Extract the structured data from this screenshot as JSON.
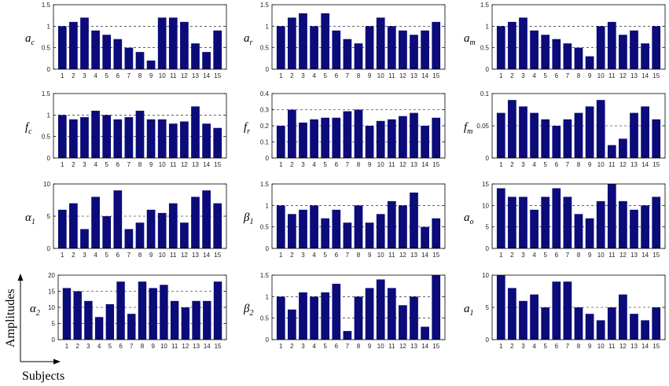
{
  "colors": {
    "bar": "#0b0b79",
    "axis": "#000000",
    "grid": "#000000"
  },
  "labels": {
    "amplitudes": "Amplitudes",
    "subjects": "Subjects"
  },
  "chart_data": [
    {
      "type": "bar",
      "label": {
        "main": "a",
        "sub": "c"
      },
      "categories": [
        "1",
        "2",
        "3",
        "4",
        "5",
        "6",
        "7",
        "8",
        "9",
        "10",
        "11",
        "12",
        "13",
        "14",
        "15"
      ],
      "values": [
        1.0,
        1.1,
        1.2,
        0.9,
        0.8,
        0.7,
        0.5,
        0.4,
        0.2,
        1.2,
        1.2,
        1.1,
        0.6,
        0.4,
        0.9
      ],
      "ylim": [
        0,
        1.5
      ],
      "yticks": [
        "0",
        "0.5",
        "1",
        "1.5"
      ],
      "ytick_values": [
        0,
        0.5,
        1,
        1.5
      ],
      "grid": true
    },
    {
      "type": "bar",
      "label": {
        "main": "a",
        "sub": "r"
      },
      "categories": [
        "1",
        "2",
        "3",
        "4",
        "5",
        "6",
        "7",
        "8",
        "9",
        "10",
        "11",
        "12",
        "13",
        "14",
        "15"
      ],
      "values": [
        1.0,
        1.2,
        1.3,
        1.0,
        1.3,
        0.9,
        0.7,
        0.6,
        1.0,
        1.2,
        1.0,
        0.9,
        0.8,
        0.9,
        1.1
      ],
      "ylim": [
        0,
        1.5
      ],
      "yticks": [
        "0",
        "0.5",
        "1",
        "1.5"
      ],
      "ytick_values": [
        0,
        0.5,
        1,
        1.5
      ],
      "grid": true
    },
    {
      "type": "bar",
      "label": {
        "main": "a",
        "sub": "m"
      },
      "categories": [
        "1",
        "2",
        "3",
        "4",
        "5",
        "6",
        "7",
        "8",
        "9",
        "10",
        "11",
        "12",
        "13",
        "14",
        "15"
      ],
      "values": [
        1.0,
        1.1,
        1.2,
        0.9,
        0.8,
        0.7,
        0.6,
        0.5,
        0.3,
        1.0,
        1.1,
        0.8,
        0.9,
        0.6,
        1.0
      ],
      "ylim": [
        0,
        1.5
      ],
      "yticks": [
        "0",
        "0.5",
        "1",
        "1.5"
      ],
      "ytick_values": [
        0,
        0.5,
        1,
        1.5
      ],
      "grid": true
    },
    {
      "type": "bar",
      "label": {
        "main": "f",
        "sub": "c"
      },
      "categories": [
        "1",
        "2",
        "3",
        "4",
        "5",
        "6",
        "7",
        "8",
        "9",
        "10",
        "11",
        "12",
        "13",
        "14",
        "15"
      ],
      "values": [
        1.0,
        0.9,
        0.95,
        1.1,
        1.0,
        0.9,
        0.95,
        1.1,
        0.9,
        0.9,
        0.8,
        0.85,
        1.2,
        0.8,
        0.7
      ],
      "ylim": [
        0,
        1.5
      ],
      "yticks": [
        "0",
        "0.5",
        "1",
        "1.5"
      ],
      "ytick_values": [
        0,
        0.5,
        1,
        1.5
      ],
      "grid": true
    },
    {
      "type": "bar",
      "label": {
        "main": "f",
        "sub": "r"
      },
      "categories": [
        "1",
        "2",
        "3",
        "4",
        "5",
        "6",
        "7",
        "8",
        "9",
        "10",
        "11",
        "12",
        "13",
        "14",
        "15"
      ],
      "values": [
        0.2,
        0.3,
        0.22,
        0.24,
        0.25,
        0.25,
        0.29,
        0.3,
        0.2,
        0.23,
        0.24,
        0.26,
        0.28,
        0.2,
        0.25
      ],
      "ylim": [
        0,
        0.4
      ],
      "yticks": [
        "0",
        "0.1",
        "0.2",
        "0.3",
        "0.4"
      ],
      "ytick_values": [
        0,
        0.1,
        0.2,
        0.3,
        0.4
      ],
      "grid": true
    },
    {
      "type": "bar",
      "label": {
        "main": "f",
        "sub": "m"
      },
      "categories": [
        "1",
        "2",
        "3",
        "4",
        "5",
        "6",
        "7",
        "8",
        "9",
        "10",
        "11",
        "12",
        "13",
        "14",
        "15"
      ],
      "values": [
        0.07,
        0.09,
        0.08,
        0.07,
        0.06,
        0.05,
        0.06,
        0.07,
        0.08,
        0.09,
        0.02,
        0.03,
        0.07,
        0.08,
        0.06
      ],
      "ylim": [
        0,
        0.1
      ],
      "yticks": [
        "0",
        "0.05",
        "0.1"
      ],
      "ytick_values": [
        0,
        0.05,
        0.1
      ],
      "grid": true
    },
    {
      "type": "bar",
      "label": {
        "main": "α",
        "sub": "1"
      },
      "categories": [
        "1",
        "2",
        "3",
        "4",
        "5",
        "6",
        "7",
        "8",
        "9",
        "10",
        "11",
        "12",
        "13",
        "14",
        "15"
      ],
      "values": [
        6,
        7,
        3,
        8,
        5,
        9,
        3,
        4,
        6,
        5.5,
        7,
        4,
        8,
        9,
        7
      ],
      "ylim": [
        0,
        10
      ],
      "yticks": [
        "0",
        "5",
        "10"
      ],
      "ytick_values": [
        0,
        5,
        10
      ],
      "grid": true
    },
    {
      "type": "bar",
      "label": {
        "main": "β",
        "sub": "1"
      },
      "categories": [
        "1",
        "2",
        "3",
        "4",
        "5",
        "6",
        "7",
        "8",
        "9",
        "10",
        "11",
        "12",
        "13",
        "14",
        "15"
      ],
      "values": [
        1.0,
        0.8,
        0.9,
        1.0,
        0.7,
        0.9,
        0.6,
        1.0,
        0.6,
        0.8,
        1.1,
        1.0,
        1.3,
        0.5,
        0.7
      ],
      "ylim": [
        0,
        1.5
      ],
      "yticks": [
        "0",
        "0.5",
        "1",
        "1.5"
      ],
      "ytick_values": [
        0,
        0.5,
        1,
        1.5
      ],
      "grid": true
    },
    {
      "type": "bar",
      "label": {
        "main": "a",
        "sub": "o"
      },
      "categories": [
        "1",
        "2",
        "3",
        "4",
        "5",
        "6",
        "7",
        "8",
        "9",
        "10",
        "11",
        "12",
        "13",
        "14",
        "15"
      ],
      "values": [
        14,
        12,
        12,
        9,
        12,
        14,
        12,
        8,
        7,
        11,
        15,
        11,
        9,
        10,
        12
      ],
      "ylim": [
        0,
        15
      ],
      "yticks": [
        "0",
        "5",
        "10",
        "15"
      ],
      "ytick_values": [
        0,
        5,
        10,
        15
      ],
      "grid": true
    },
    {
      "type": "bar",
      "label": {
        "main": "α",
        "sub": "2"
      },
      "categories": [
        "1",
        "2",
        "3",
        "4",
        "5",
        "6",
        "7",
        "8",
        "9",
        "10",
        "11",
        "12",
        "13",
        "14",
        "15"
      ],
      "values": [
        16,
        15,
        12,
        7,
        11,
        18,
        8,
        18,
        16,
        17,
        12,
        10,
        12,
        12,
        18
      ],
      "ylim": [
        0,
        20
      ],
      "yticks": [
        "0",
        "5",
        "10",
        "15",
        "20"
      ],
      "ytick_values": [
        0,
        5,
        10,
        15,
        20
      ],
      "grid": true
    },
    {
      "type": "bar",
      "label": {
        "main": "β",
        "sub": "2"
      },
      "categories": [
        "1",
        "2",
        "3",
        "4",
        "5",
        "6",
        "7",
        "8",
        "9",
        "10",
        "11",
        "12",
        "13",
        "14",
        "15"
      ],
      "values": [
        1.0,
        0.7,
        1.1,
        1.0,
        1.1,
        1.3,
        0.2,
        1.0,
        1.2,
        1.4,
        1.2,
        0.8,
        1.0,
        0.3,
        1.5
      ],
      "ylim": [
        0,
        1.5
      ],
      "yticks": [
        "0",
        "0.5",
        "1",
        "1.5"
      ],
      "ytick_values": [
        0,
        0.5,
        1,
        1.5
      ],
      "grid": true
    },
    {
      "type": "bar",
      "label": {
        "main": "a",
        "sub": "1"
      },
      "categories": [
        "1",
        "2",
        "3",
        "4",
        "5",
        "6",
        "7",
        "8",
        "9",
        "10",
        "11",
        "12",
        "13",
        "14",
        "15"
      ],
      "values": [
        10,
        8,
        6,
        7,
        5,
        9,
        9,
        5,
        4,
        3,
        5,
        7,
        4,
        3,
        5
      ],
      "ylim": [
        0,
        10
      ],
      "yticks": [
        "0",
        "5",
        "10"
      ],
      "ytick_values": [
        0,
        5,
        10
      ],
      "grid": true
    }
  ]
}
